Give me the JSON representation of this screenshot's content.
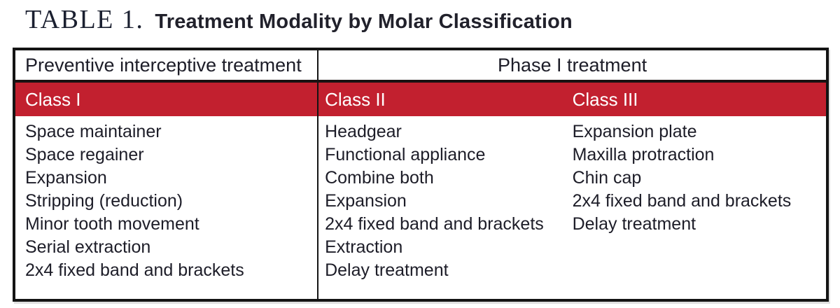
{
  "title": {
    "label": "TABLE 1.",
    "caption": "Treatment Modality by Molar Classification"
  },
  "table": {
    "header": {
      "preventive": "Preventive interceptive treatment",
      "phase1": "Phase I treatment"
    },
    "columns": [
      {
        "class_label": "Class I",
        "items": [
          "Space maintainer",
          "Space regainer",
          "Expansion",
          "Stripping (reduction)",
          "Minor tooth movement",
          "Serial extraction",
          "2x4 fixed band and brackets"
        ]
      },
      {
        "class_label": "Class II",
        "items": [
          "Headgear",
          "Functional appliance",
          "Combine both",
          "Expansion",
          "2x4 fixed band and brackets",
          "Extraction",
          "Delay treatment"
        ]
      },
      {
        "class_label": "Class III",
        "items": [
          "Expansion plate",
          "Maxilla protraction",
          "Chin cap",
          "2x4 fixed band and brackets",
          "Delay treatment"
        ]
      }
    ],
    "colors": {
      "band_red": "#C2202F",
      "band_text": "#FFFFFF",
      "border": "#141414",
      "text": "#1D1D28"
    }
  }
}
